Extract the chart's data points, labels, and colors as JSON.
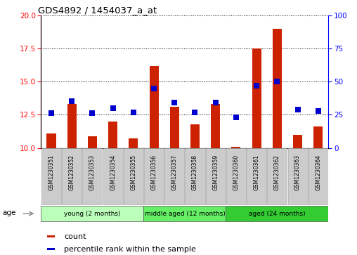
{
  "title": "GDS4892 / 1454037_a_at",
  "samples": [
    "GSM1230351",
    "GSM1230352",
    "GSM1230353",
    "GSM1230354",
    "GSM1230355",
    "GSM1230356",
    "GSM1230357",
    "GSM1230358",
    "GSM1230359",
    "GSM1230360",
    "GSM1230361",
    "GSM1230362",
    "GSM1230363",
    "GSM1230364"
  ],
  "counts": [
    11.1,
    13.3,
    10.9,
    12.0,
    10.7,
    16.2,
    13.1,
    11.8,
    13.3,
    10.1,
    17.5,
    19.0,
    11.0,
    11.6
  ],
  "percentiles": [
    26,
    35,
    26,
    30,
    27,
    45,
    34,
    27,
    34,
    23,
    47,
    50,
    29,
    28
  ],
  "ylim_left": [
    10,
    20
  ],
  "ylim_right": [
    0,
    100
  ],
  "yticks_left": [
    10,
    12.5,
    15,
    17.5,
    20
  ],
  "yticks_right": [
    0,
    25,
    50,
    75,
    100
  ],
  "bar_color": "#cc2200",
  "dot_color": "#0000cc",
  "dot_size": 28,
  "bar_width": 0.45,
  "groups": [
    {
      "label": "young (2 months)",
      "start": 0,
      "end": 5
    },
    {
      "label": "middle aged (12 months)",
      "start": 5,
      "end": 9
    },
    {
      "label": "aged (24 months)",
      "start": 9,
      "end": 14
    }
  ],
  "group_colors": [
    "#bbffbb",
    "#66ee66",
    "#33cc33"
  ],
  "legend_count_label": "count",
  "legend_pct_label": "percentile rank within the sample",
  "age_label": "age",
  "xtick_bg": "#cccccc",
  "figsize": [
    5.08,
    3.63
  ],
  "dpi": 100
}
